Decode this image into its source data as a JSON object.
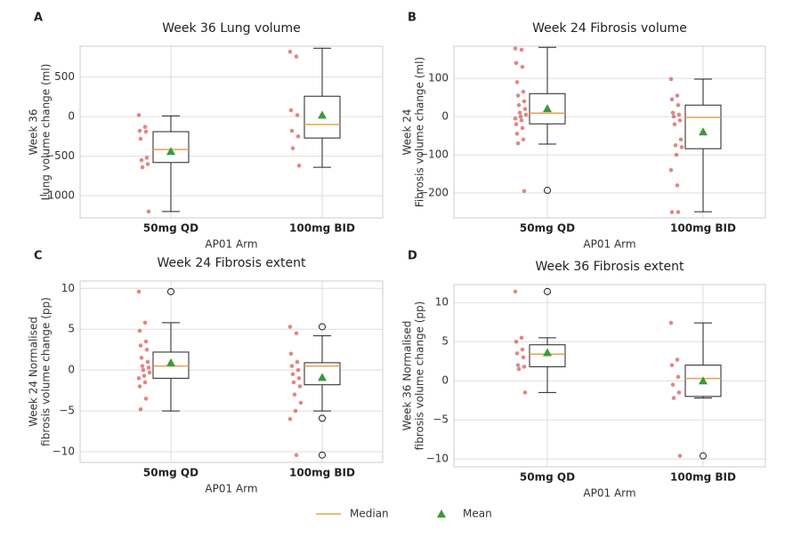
{
  "chart_data": [
    {
      "type": "box",
      "panel_label": "A",
      "title": "Week 36 Lung volume",
      "ylabel": [
        "Week 36",
        "Lung volume change (ml)"
      ],
      "xlabel": "AP01 Arm",
      "categories": [
        "50mg QD",
        "100mg BID"
      ],
      "ylim": [
        -1280,
        890
      ],
      "yticks": [
        {
          "value": -1000,
          "label": "−1000"
        },
        {
          "value": -500,
          "label": "−500"
        },
        0,
        500
      ],
      "grid": true,
      "box_color": "#222222",
      "median_color": "#e8a04c",
      "mean_color": "#3a9a3a",
      "point_color": "#d9534f",
      "boxes": [
        {
          "min": -1200,
          "q1": -580,
          "median": -415,
          "q3": -190,
          "max": 10,
          "mean": -440,
          "outliers": []
        },
        {
          "min": -640,
          "q1": -270,
          "median": -100,
          "q3": 258,
          "max": 865,
          "mean": 20,
          "outliers": []
        }
      ],
      "points": [
        [
          20,
          -130,
          -180,
          -190,
          -280,
          -520,
          -550,
          -600,
          -640,
          -1200
        ],
        [
          820,
          760,
          80,
          20,
          -180,
          -250,
          -400,
          -620
        ]
      ]
    },
    {
      "type": "box",
      "panel_label": "B",
      "title": "Week 24 Fibrosis volume",
      "ylabel": [
        "Week 24",
        "Fibrosis volume change (ml)"
      ],
      "xlabel": "AP01 Arm",
      "categories": [
        "50mg QD",
        "100mg BID"
      ],
      "ylim": [
        -265,
        184
      ],
      "yticks": [
        {
          "value": -200,
          "label": "−200"
        },
        {
          "value": -100,
          "label": "−100"
        },
        0,
        100
      ],
      "grid": true,
      "box_color": "#222222",
      "median_color": "#e8a04c",
      "mean_color": "#3a9a3a",
      "point_color": "#d9534f",
      "boxes": [
        {
          "min": -72,
          "q1": -19,
          "median": 9,
          "q3": 60,
          "max": 181,
          "mean": 21,
          "outliers": [
            -193
          ]
        },
        {
          "min": -249,
          "q1": -84,
          "median": -2,
          "q3": 30,
          "max": 98,
          "mean": -40,
          "outliers": []
        }
      ],
      "points": [
        [
          178,
          175,
          140,
          130,
          90,
          65,
          55,
          40,
          30,
          20,
          10,
          5,
          0,
          -5,
          -10,
          -20,
          -30,
          -45,
          -60,
          -70,
          -195
        ],
        [
          98,
          55,
          45,
          30,
          10,
          5,
          0,
          -10,
          -20,
          -60,
          -75,
          -80,
          -100,
          -140,
          -180,
          -250,
          -250
        ]
      ]
    },
    {
      "type": "box",
      "panel_label": "C",
      "title": "Week 24 Fibrosis extent",
      "ylabel": [
        "Week 24 Normalised",
        "fibrosis volume change (pp)"
      ],
      "xlabel": "AP01 Arm",
      "categories": [
        "50mg QD",
        "100mg BID"
      ],
      "ylim": [
        -11.3,
        10.9
      ],
      "yticks": [
        {
          "value": -10,
          "label": "−10"
        },
        {
          "value": -5,
          "label": "−5"
        },
        0,
        5,
        10
      ],
      "grid": true,
      "box_color": "#222222",
      "median_color": "#e8a04c",
      "mean_color": "#3a9a3a",
      "point_color": "#d9534f",
      "boxes": [
        {
          "min": -5,
          "q1": -1,
          "median": 0.5,
          "q3": 2.2,
          "max": 5.8,
          "mean": 0.9,
          "outliers": [
            9.6
          ]
        },
        {
          "min": -5,
          "q1": -1.8,
          "median": 0.5,
          "q3": 0.9,
          "max": 4.2,
          "mean": -0.9,
          "outliers": [
            5.3,
            -5.9,
            -10.4
          ]
        }
      ],
      "points": [
        [
          9.6,
          5.8,
          4.8,
          3.5,
          3,
          2.5,
          1.5,
          1,
          0.5,
          0.3,
          0,
          -0.3,
          -0.7,
          -1,
          -1.5,
          -2,
          -3.5,
          -4.8
        ],
        [
          5.3,
          4.5,
          2,
          1,
          0.5,
          0,
          -0.5,
          -1,
          -1.5,
          -2,
          -3,
          -4,
          -5,
          -6,
          -10.4
        ]
      ]
    },
    {
      "type": "box",
      "panel_label": "D",
      "title": "Week 36 Fibrosis extent",
      "ylabel": [
        "Week 36 Normalised",
        "fibrosis volume change (pp)"
      ],
      "xlabel": "AP01 Arm",
      "categories": [
        "50mg QD",
        "100mg BID"
      ],
      "ylim": [
        -11,
        12.3
      ],
      "yticks": [
        {
          "value": -10,
          "label": "−10"
        },
        {
          "value": -5,
          "label": "−5"
        },
        0,
        5,
        10
      ],
      "grid": true,
      "box_color": "#222222",
      "median_color": "#e8a04c",
      "mean_color": "#3a9a3a",
      "point_color": "#d9534f",
      "boxes": [
        {
          "min": -1.5,
          "q1": 1.8,
          "median": 3.4,
          "q3": 4.6,
          "max": 5.5,
          "mean": 3.6,
          "outliers": [
            11.4
          ]
        },
        {
          "min": -2.2,
          "q1": -2,
          "median": 0.3,
          "q3": 2,
          "max": 7.4,
          "mean": 0,
          "outliers": [
            -9.6
          ]
        }
      ],
      "points": [
        [
          11.4,
          5.5,
          5,
          4,
          3.5,
          3,
          2,
          1.8,
          1.5,
          -1.5
        ],
        [
          7.4,
          2.7,
          2,
          0.5,
          -0.5,
          -1.5,
          -2.2,
          -9.6
        ]
      ]
    }
  ],
  "legend": [
    {
      "name": "Median",
      "color": "#e8a04c",
      "marker": "line"
    },
    {
      "name": "Mean",
      "color": "#3a9a3a",
      "marker": "triangle"
    }
  ]
}
